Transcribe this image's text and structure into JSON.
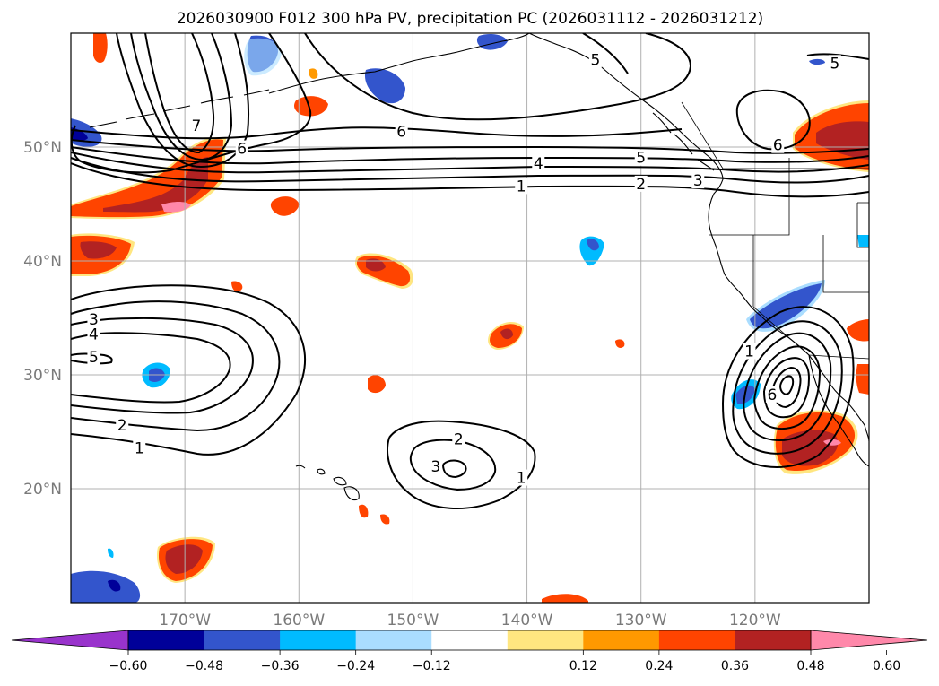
{
  "chart_data": {
    "type": "map-contour",
    "title": "2026030900 F012 300 hPa PV, precipitation PC (2026031112 - 2026031212)",
    "lon_range": [
      -180,
      -110
    ],
    "lat_range": [
      10,
      60
    ],
    "lon_ticks": [
      {
        "value": -170,
        "label": "170°W"
      },
      {
        "value": -160,
        "label": "160°W"
      },
      {
        "value": -150,
        "label": "150°W"
      },
      {
        "value": -140,
        "label": "140°W"
      },
      {
        "value": -130,
        "label": "130°W"
      },
      {
        "value": -120,
        "label": "120°W"
      }
    ],
    "lat_ticks": [
      {
        "value": 20,
        "label": "20°N"
      },
      {
        "value": 30,
        "label": "30°N"
      },
      {
        "value": 40,
        "label": "40°N"
      },
      {
        "value": 50,
        "label": "50°N"
      }
    ],
    "gridlines": true,
    "colorbar": {
      "orientation": "horizontal",
      "extend": "both",
      "levels": [
        -0.6,
        -0.48,
        -0.36,
        -0.24,
        -0.12,
        0.12,
        0.24,
        0.36,
        0.48,
        0.6
      ],
      "tick_labels": [
        "−0.60",
        "−0.48",
        "−0.36",
        "−0.24",
        "−0.12",
        "0.12",
        "0.24",
        "0.36",
        "0.48",
        "0.60"
      ],
      "colors": [
        "#9933cc",
        "#000099",
        "#3355cc",
        "#00bbff",
        "#aaddff",
        "#ffffff",
        "#ffe680",
        "#ff9900",
        "#ff4400",
        "#b22222",
        "#ff88aa"
      ]
    },
    "pv_contours": [
      {
        "name": "jet-band",
        "levels": [
          1,
          2,
          3,
          4,
          5,
          6
        ],
        "labels": [
          {
            "text": "1",
            "lon": -140.5,
            "lat": 46.5
          },
          {
            "text": "2",
            "lon": -130,
            "lat": 46.7
          },
          {
            "text": "3",
            "lon": -125,
            "lat": 47.0
          },
          {
            "text": "4",
            "lon": -139,
            "lat": 48.5
          },
          {
            "text": "5",
            "lon": -130,
            "lat": 49.0
          },
          {
            "text": "6",
            "lon": -151,
            "lat": 51.3
          }
        ]
      },
      {
        "name": "ridge-northwest",
        "labels": [
          {
            "text": "7",
            "lon": -169,
            "lat": 51.8
          },
          {
            "text": "6",
            "lon": -165,
            "lat": 49.8
          }
        ]
      },
      {
        "name": "low-west",
        "labels": [
          {
            "text": "3",
            "lon": -178,
            "lat": 34.8
          },
          {
            "text": "4",
            "lon": -178,
            "lat": 33.5
          },
          {
            "text": "5",
            "lon": -178,
            "lat": 31.5
          },
          {
            "text": "2",
            "lon": -175.5,
            "lat": 25.5
          },
          {
            "text": "1",
            "lon": -174,
            "lat": 23.5
          }
        ]
      },
      {
        "name": "low-central",
        "labels": [
          {
            "text": "2",
            "lon": -146,
            "lat": 24.3
          },
          {
            "text": "3",
            "lon": -148,
            "lat": 21.9
          },
          {
            "text": "1",
            "lon": -140.5,
            "lat": 20.9
          }
        ]
      },
      {
        "name": "low-east",
        "labels": [
          {
            "text": "1",
            "lon": -120.5,
            "lat": 32.0
          },
          {
            "text": "6",
            "lon": -118.5,
            "lat": 28.2
          }
        ]
      },
      {
        "name": "alaska-high",
        "labels": [
          {
            "text": "5",
            "lon": -134,
            "lat": 57.6
          },
          {
            "text": "5",
            "lon": -113,
            "lat": 57.3
          },
          {
            "text": "6",
            "lon": -118,
            "lat": 50.1
          }
        ]
      }
    ]
  }
}
